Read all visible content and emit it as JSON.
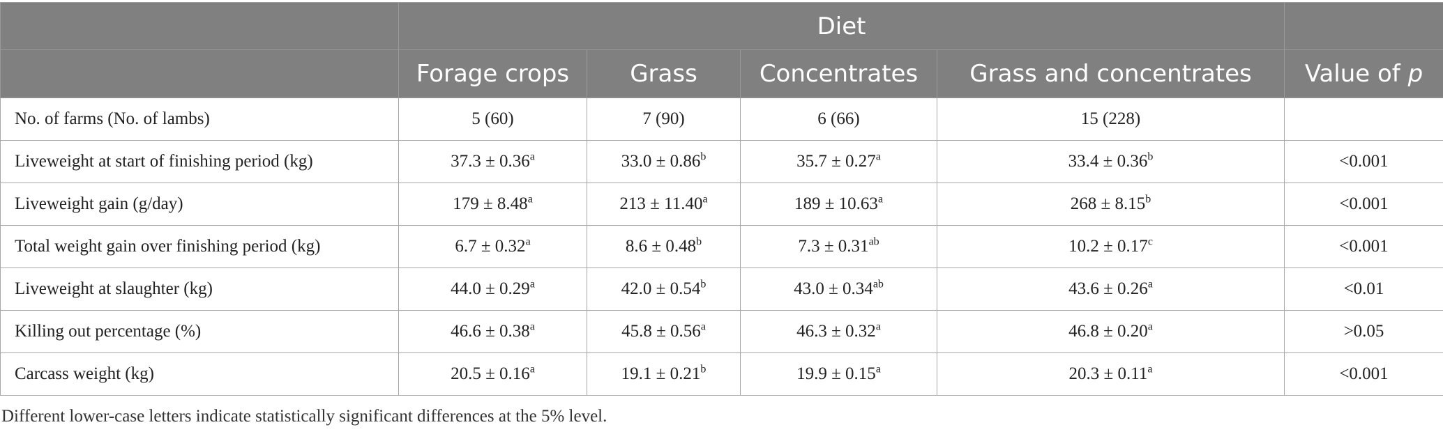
{
  "header": {
    "group_label": "Diet",
    "columns": [
      "Forage crops",
      "Grass",
      "Concentrates",
      "Grass and concentrates"
    ],
    "pvalue_prefix": "Value of ",
    "pvalue_symbol": "p"
  },
  "rows": [
    {
      "label": "No. of farms (No. of lambs)",
      "cells": [
        {
          "value": "5 (60)",
          "sup": ""
        },
        {
          "value": "7 (90)",
          "sup": ""
        },
        {
          "value": "6 (66)",
          "sup": ""
        },
        {
          "value": "15 (228)",
          "sup": ""
        }
      ],
      "p": ""
    },
    {
      "label": "Liveweight at start of finishing period (kg)",
      "cells": [
        {
          "value": "37.3 ± 0.36",
          "sup": "a"
        },
        {
          "value": "33.0 ± 0.86",
          "sup": "b"
        },
        {
          "value": "35.7 ± 0.27",
          "sup": "a"
        },
        {
          "value": "33.4 ± 0.36",
          "sup": "b"
        }
      ],
      "p": "<0.001"
    },
    {
      "label": "Liveweight gain (g/day)",
      "cells": [
        {
          "value": "179 ± 8.48",
          "sup": "a"
        },
        {
          "value": "213 ± 11.40",
          "sup": "a"
        },
        {
          "value": "189 ± 10.63",
          "sup": "a"
        },
        {
          "value": "268 ± 8.15",
          "sup": "b"
        }
      ],
      "p": "<0.001"
    },
    {
      "label": "Total weight gain over finishing period (kg)",
      "cells": [
        {
          "value": "6.7 ± 0.32",
          "sup": "a"
        },
        {
          "value": "8.6 ± 0.48",
          "sup": "b"
        },
        {
          "value": "7.3 ± 0.31",
          "sup": "ab"
        },
        {
          "value": "10.2 ± 0.17",
          "sup": "c"
        }
      ],
      "p": "<0.001"
    },
    {
      "label": "Liveweight at slaughter (kg)",
      "cells": [
        {
          "value": "44.0 ± 0.29",
          "sup": "a"
        },
        {
          "value": "42.0 ± 0.54",
          "sup": "b"
        },
        {
          "value": "43.0 ± 0.34",
          "sup": "ab"
        },
        {
          "value": "43.6 ± 0.26",
          "sup": "a"
        }
      ],
      "p": "<0.01"
    },
    {
      "label": "Killing out percentage (%)",
      "cells": [
        {
          "value": "46.6 ± 0.38",
          "sup": "a"
        },
        {
          "value": "45.8 ± 0.56",
          "sup": "a"
        },
        {
          "value": "46.3 ± 0.32",
          "sup": "a"
        },
        {
          "value": "46.8 ± 0.20",
          "sup": "a"
        }
      ],
      "p": ">0.05"
    },
    {
      "label": "Carcass weight (kg)",
      "cells": [
        {
          "value": "20.5 ± 0.16",
          "sup": "a"
        },
        {
          "value": "19.1 ± 0.21",
          "sup": "b"
        },
        {
          "value": "19.9 ± 0.15",
          "sup": "a"
        },
        {
          "value": "20.3 ± 0.11",
          "sup": "a"
        }
      ],
      "p": "<0.001"
    }
  ],
  "footnote": "Different lower-case letters indicate statistically significant differences at the 5% level.",
  "colors": {
    "header_bg": "#808080",
    "header_text": "#ffffff",
    "border": "#a6a6a6"
  }
}
